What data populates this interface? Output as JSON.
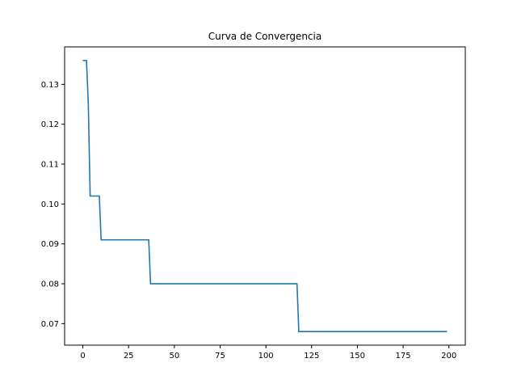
{
  "chart_data": {
    "type": "line",
    "title": "Curva de Convergencia",
    "xlabel": "",
    "ylabel": "",
    "xlim": [
      -9.95,
      208.95
    ],
    "ylim": [
      0.0646,
      0.1394
    ],
    "xticks": [
      0,
      25,
      50,
      75,
      100,
      125,
      150,
      175,
      200
    ],
    "yticks": [
      0.07,
      0.08,
      0.09,
      0.1,
      0.11,
      0.12,
      0.13
    ],
    "ytick_labels": [
      "0.07",
      "0.08",
      "0.09",
      "0.10",
      "0.11",
      "0.12",
      "0.13"
    ],
    "grid": false,
    "line_color": "#1f77b4",
    "series": [
      {
        "x": [
          0,
          2,
          3,
          4,
          9,
          10,
          36,
          37,
          117,
          118,
          199
        ],
        "values": [
          0.136,
          0.136,
          0.125,
          0.102,
          0.102,
          0.091,
          0.091,
          0.08,
          0.08,
          0.068,
          0.068
        ]
      }
    ]
  }
}
